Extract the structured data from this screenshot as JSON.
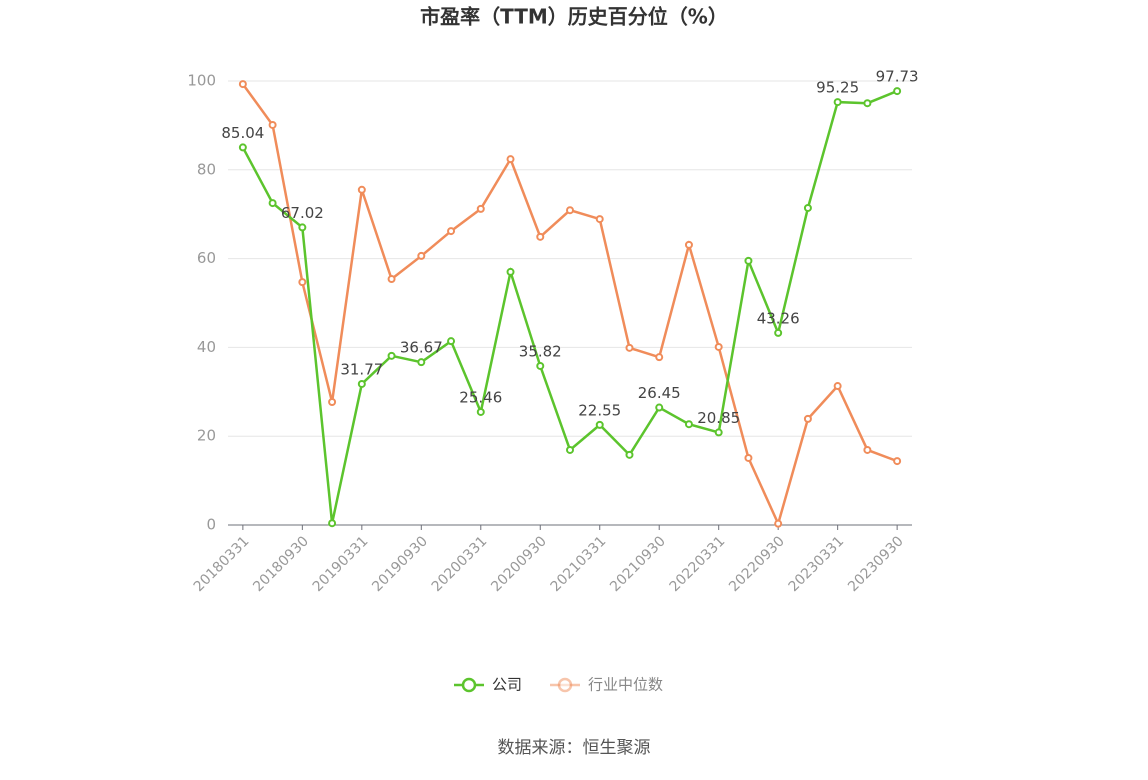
{
  "chart_data": {
    "type": "line",
    "title": "市盈率（TTM）历史百分位（%）",
    "source": "数据来源：恒生聚源",
    "categories": [
      "20180331",
      null,
      "20180930",
      null,
      "20190331",
      null,
      "20190930",
      null,
      "20200331",
      null,
      "20200930",
      null,
      "20210331",
      null,
      "20210930",
      null,
      "20220331",
      null,
      "20220930",
      null,
      "20230331",
      null,
      "20230930"
    ],
    "series": [
      {
        "name": "公司",
        "color": "#5cc42d",
        "values": [
          85.04,
          72.5,
          67.02,
          0.4,
          31.77,
          38.1,
          36.67,
          41.4,
          25.46,
          57.0,
          35.82,
          16.9,
          22.55,
          15.8,
          26.45,
          22.7,
          20.85,
          59.5,
          43.26,
          71.4,
          95.25,
          95.0,
          97.73
        ],
        "value_labels": [
          "85.04",
          null,
          "67.02",
          null,
          "31.77",
          null,
          "36.67",
          null,
          "25.46",
          null,
          "35.82",
          null,
          "22.55",
          null,
          "26.45",
          null,
          "20.85",
          null,
          "43.26",
          null,
          "95.25",
          null,
          "97.73"
        ]
      },
      {
        "name": "行业中位数",
        "color": "#f08c5a",
        "values": [
          99.3,
          90.1,
          54.7,
          27.7,
          75.5,
          55.4,
          60.6,
          66.2,
          71.2,
          82.4,
          64.9,
          70.9,
          68.9,
          39.9,
          37.8,
          63.1,
          40.1,
          15.1,
          0.3,
          23.9,
          31.3,
          16.9,
          14.4
        ]
      }
    ],
    "ylim": [
      0,
      100
    ],
    "yticks": [
      0,
      20,
      40,
      60,
      80,
      100
    ],
    "grid": true
  }
}
